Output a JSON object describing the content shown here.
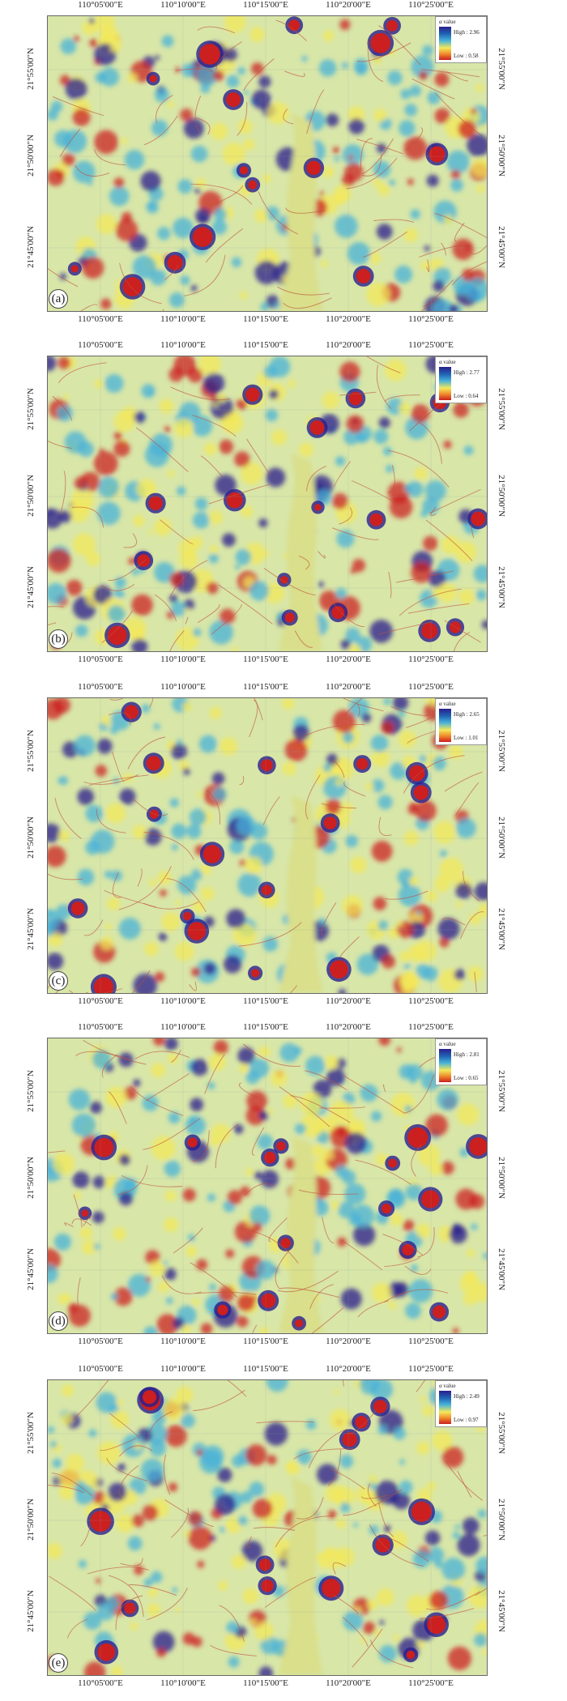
{
  "axis_labels": {
    "top": [
      "110°05'00\"E",
      "110°10'00\"E",
      "110°15'00\"E",
      "110°20'00\"E",
      "110°25'00\"E"
    ],
    "bottom": [
      "110°05'00\"E",
      "110°10'00\"E",
      "110°15'00\"E",
      "110°20'00\"E",
      "110°25'00\"E"
    ],
    "left": [
      "21°55'00\"N",
      "21°50'00\"N",
      "21°45'00\"N"
    ],
    "right": [
      "21°55'00\"N",
      "21°50'00\"N",
      "21°45'00\"N"
    ]
  },
  "legend_colors": {
    "high": "#2a1e8c",
    "mid_high": "#48b2d8",
    "mid": "#f3e85a",
    "low": "#cc1f1f"
  },
  "panels": [
    {
      "label": "(a)",
      "legend": {
        "title": "α value",
        "high": "High : 2.96",
        "low": "Low : 0.58"
      }
    },
    {
      "label": "(b)",
      "legend": {
        "title": "α value",
        "high": "High : 2.77",
        "low": "Low : 0.64"
      }
    },
    {
      "label": "(c)",
      "legend": {
        "title": "α value",
        "high": "High : 2.65",
        "low": "Low : 1.01"
      }
    },
    {
      "label": "(d)",
      "legend": {
        "title": "α value",
        "high": "High : 2.81",
        "low": "Low : 0.65"
      }
    },
    {
      "label": "(e)",
      "legend": {
        "title": "α value",
        "high": "High : 2.49",
        "low": "Low : 0.97"
      }
    }
  ]
}
